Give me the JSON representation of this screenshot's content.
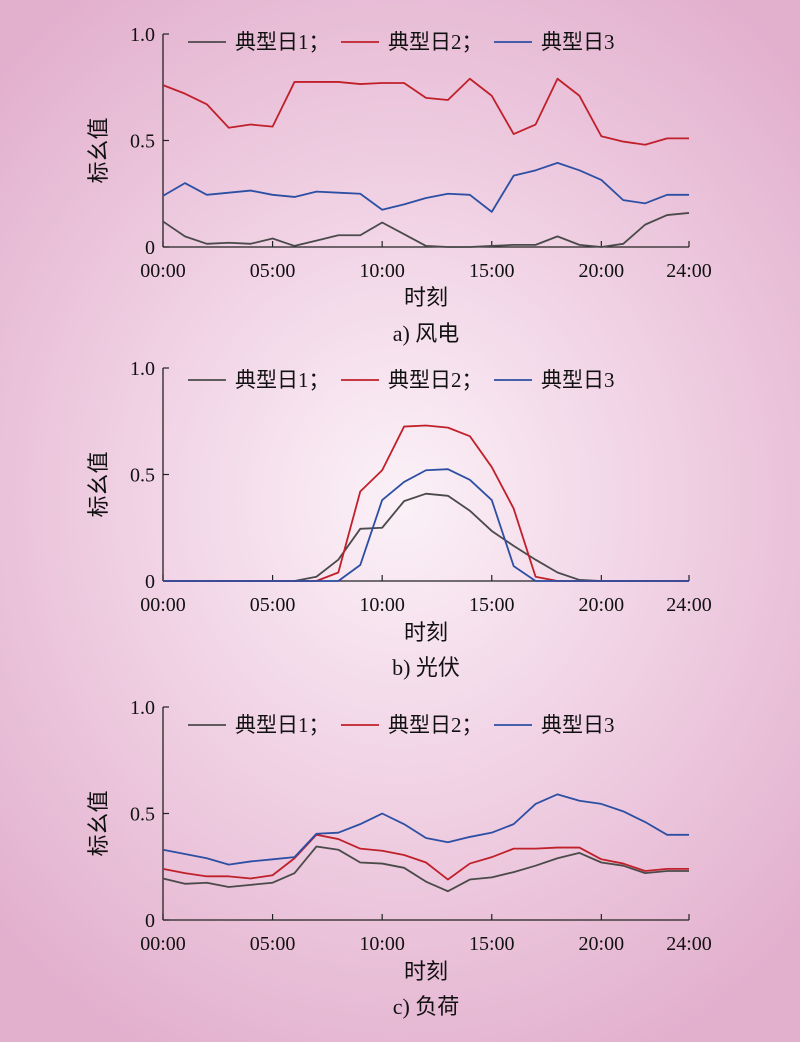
{
  "chart_data": [
    {
      "type": "line",
      "caption": "a) 风电",
      "xlabel": "时刻",
      "ylabel": "标幺值",
      "xticks": [
        "00:00",
        "05:00",
        "10:00",
        "15:00",
        "20:00",
        "24:00"
      ],
      "yticks": [
        "0",
        "0.5",
        "1.0"
      ],
      "ylim": [
        0,
        1.0
      ],
      "xlim": [
        0,
        24
      ],
      "x": [
        0,
        1,
        2,
        3,
        4,
        5,
        6,
        7,
        8,
        9,
        10,
        11,
        12,
        13,
        14,
        15,
        16,
        17,
        18,
        19,
        20,
        21,
        22,
        23,
        24
      ],
      "series": [
        {
          "name": "典型日1；",
          "color": "#4a4a4a",
          "values": [
            0.12,
            0.05,
            0.015,
            0.02,
            0.015,
            0.04,
            0.005,
            0.03,
            0.055,
            0.055,
            0.115,
            0.06,
            0.005,
            0.0,
            0.0,
            0.005,
            0.01,
            0.01,
            0.05,
            0.01,
            0.0,
            0.015,
            0.105,
            0.15,
            0.16
          ]
        },
        {
          "name": "典型日2；",
          "color": "#c0202a",
          "values": [
            0.76,
            0.72,
            0.67,
            0.56,
            0.575,
            0.565,
            0.775,
            0.775,
            0.775,
            0.765,
            0.77,
            0.77,
            0.7,
            0.69,
            0.79,
            0.71,
            0.53,
            0.575,
            0.79,
            0.71,
            0.52,
            0.495,
            0.48,
            0.51,
            0.51
          ]
        },
        {
          "name": "典型日3",
          "color": "#2c4fa3",
          "values": [
            0.24,
            0.3,
            0.245,
            0.255,
            0.265,
            0.245,
            0.235,
            0.26,
            0.255,
            0.25,
            0.175,
            0.2,
            0.23,
            0.25,
            0.245,
            0.165,
            0.335,
            0.36,
            0.395,
            0.36,
            0.315,
            0.22,
            0.205,
            0.245,
            0.245
          ]
        }
      ]
    },
    {
      "type": "line",
      "caption": "b) 光伏",
      "xlabel": "时刻",
      "ylabel": "标幺值",
      "xticks": [
        "00:00",
        "05:00",
        "10:00",
        "15:00",
        "20:00",
        "24:00"
      ],
      "yticks": [
        "0",
        "0.5",
        "1.0"
      ],
      "ylim": [
        0,
        1.0
      ],
      "xlim": [
        0,
        24
      ],
      "x": [
        0,
        1,
        2,
        3,
        4,
        5,
        6,
        7,
        8,
        9,
        10,
        11,
        12,
        13,
        14,
        15,
        16,
        17,
        18,
        19,
        20,
        21,
        22,
        23,
        24
      ],
      "series": [
        {
          "name": "典型日1；",
          "color": "#4a4a4a",
          "values": [
            0,
            0,
            0,
            0,
            0,
            0,
            0,
            0.02,
            0.1,
            0.245,
            0.25,
            0.375,
            0.41,
            0.4,
            0.33,
            0.235,
            0.165,
            0.1,
            0.04,
            0.005,
            0,
            0,
            0,
            0,
            0
          ]
        },
        {
          "name": "典型日2；",
          "color": "#c0202a",
          "values": [
            0,
            0,
            0,
            0,
            0,
            0,
            0,
            0,
            0.04,
            0.42,
            0.52,
            0.725,
            0.73,
            0.72,
            0.68,
            0.535,
            0.34,
            0.02,
            0,
            0,
            0,
            0,
            0,
            0,
            0
          ]
        },
        {
          "name": "典型日3",
          "color": "#2c4fa3",
          "values": [
            0,
            0,
            0,
            0,
            0,
            0,
            0,
            0,
            0,
            0.075,
            0.38,
            0.465,
            0.52,
            0.525,
            0.475,
            0.38,
            0.07,
            0,
            0,
            0,
            0,
            0,
            0,
            0,
            0
          ]
        }
      ]
    },
    {
      "type": "line",
      "caption": "c) 负荷",
      "xlabel": "时刻",
      "ylabel": "标幺值",
      "xticks": [
        "00:00",
        "05:00",
        "10:00",
        "15:00",
        "20:00",
        "24:00"
      ],
      "yticks": [
        "0",
        "0.5",
        "1.0"
      ],
      "ylim": [
        0,
        1.0
      ],
      "xlim": [
        0,
        24
      ],
      "x": [
        0,
        1,
        2,
        3,
        4,
        5,
        6,
        7,
        8,
        9,
        10,
        11,
        12,
        13,
        14,
        15,
        16,
        17,
        18,
        19,
        20,
        21,
        22,
        23,
        24
      ],
      "series": [
        {
          "name": "典型日1；",
          "color": "#4a4a4a",
          "values": [
            0.195,
            0.17,
            0.175,
            0.155,
            0.165,
            0.175,
            0.22,
            0.345,
            0.33,
            0.27,
            0.265,
            0.245,
            0.18,
            0.135,
            0.19,
            0.2,
            0.225,
            0.255,
            0.29,
            0.315,
            0.27,
            0.255,
            0.22,
            0.23,
            0.23
          ]
        },
        {
          "name": "典型日2；",
          "color": "#c0202a",
          "values": [
            0.24,
            0.22,
            0.205,
            0.205,
            0.195,
            0.21,
            0.29,
            0.4,
            0.38,
            0.335,
            0.325,
            0.305,
            0.27,
            0.19,
            0.265,
            0.295,
            0.335,
            0.335,
            0.34,
            0.34,
            0.285,
            0.265,
            0.23,
            0.24,
            0.24
          ]
        },
        {
          "name": "典型日3",
          "color": "#2c4fa3",
          "values": [
            0.33,
            0.31,
            0.29,
            0.26,
            0.275,
            0.285,
            0.295,
            0.405,
            0.41,
            0.45,
            0.5,
            0.45,
            0.385,
            0.365,
            0.39,
            0.41,
            0.45,
            0.545,
            0.59,
            0.56,
            0.545,
            0.51,
            0.46,
            0.4,
            0.4
          ]
        }
      ]
    }
  ]
}
